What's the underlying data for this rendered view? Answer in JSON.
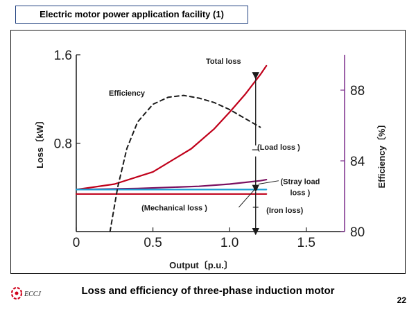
{
  "slide": {
    "title": "Electric motor power application facility (1)",
    "caption": "Loss and efficiency of three-phase induction motor",
    "page_number": "22",
    "logo_text": "ECCJ"
  },
  "chart_data": {
    "type": "line",
    "title": "",
    "xlabel": "Output〔p.u.〕",
    "ylabel_left": "Loss〔kW〕",
    "ylabel_right": "Efficiency〔%〕",
    "xlim": [
      0,
      1.75
    ],
    "ylim_left": [
      0,
      1.6
    ],
    "ylim_right": [
      80,
      90
    ],
    "x_ticks": [
      0,
      0.5,
      1.0,
      1.5
    ],
    "x_tick_labels": [
      "0",
      "0.5",
      "1.0",
      "1.5"
    ],
    "y_left_ticks": [
      0.8,
      1.6
    ],
    "y_left_tick_labels": [
      "0.8",
      "1.6"
    ],
    "y_right_ticks": [
      80,
      84,
      88
    ],
    "y_right_tick_labels": [
      "80",
      "84",
      "88"
    ],
    "grid": false,
    "series": [
      {
        "name": "Total loss",
        "axis": "left",
        "color": "#c0001a",
        "style": "solid",
        "x": [
          0,
          0.25,
          0.5,
          0.75,
          0.9,
          1.0,
          1.1,
          1.2,
          1.24
        ],
        "y": [
          0.38,
          0.43,
          0.54,
          0.75,
          0.93,
          1.08,
          1.24,
          1.42,
          1.5
        ]
      },
      {
        "name": "Stray load loss",
        "axis": "left",
        "color": "#7b1060",
        "style": "solid",
        "x": [
          0,
          0.4,
          0.8,
          1.0,
          1.2,
          1.24
        ],
        "y": [
          0.38,
          0.39,
          0.41,
          0.43,
          0.46,
          0.47
        ]
      },
      {
        "name": "Mechanical loss",
        "axis": "left",
        "color": "#1a9fd4",
        "style": "solid",
        "x": [
          0,
          1.24
        ],
        "y": [
          0.38,
          0.38
        ]
      },
      {
        "name": "Iron loss",
        "axis": "left",
        "color": "#c0001a",
        "style": "solid",
        "x": [
          0,
          1.24
        ],
        "y": [
          0.34,
          0.34
        ]
      },
      {
        "name": "Efficiency",
        "axis": "right",
        "color": "#1a1a1a",
        "style": "dashed",
        "x": [
          0.22,
          0.27,
          0.33,
          0.4,
          0.5,
          0.6,
          0.7,
          0.8,
          0.9,
          1.0,
          1.1,
          1.2
        ],
        "y": [
          80.0,
          82.5,
          84.7,
          86.2,
          87.2,
          87.6,
          87.7,
          87.55,
          87.3,
          86.9,
          86.4,
          85.9
        ]
      }
    ],
    "annotations": [
      {
        "text": "Total loss",
        "x": 0.96,
        "y": 1.52
      },
      {
        "text": "Efficiency",
        "x": 0.33,
        "y": 1.23
      },
      {
        "text": "(Load loss )",
        "x": 1.32,
        "y": 0.74
      },
      {
        "text": "(Stray load",
        "x": 1.46,
        "y": 0.43
      },
      {
        "text": "loss )",
        "x": 1.46,
        "y": 0.33
      },
      {
        "text": "(Mechanical loss )",
        "x": 0.64,
        "y": 0.19
      },
      {
        "text": "(Iron loss)",
        "x": 1.36,
        "y": 0.17
      }
    ],
    "marker_x": 1.17,
    "marker_point_y": 0.39,
    "colors": {
      "axis_left": "#1a1a1a",
      "axis_right": "#7b2d8b"
    }
  }
}
